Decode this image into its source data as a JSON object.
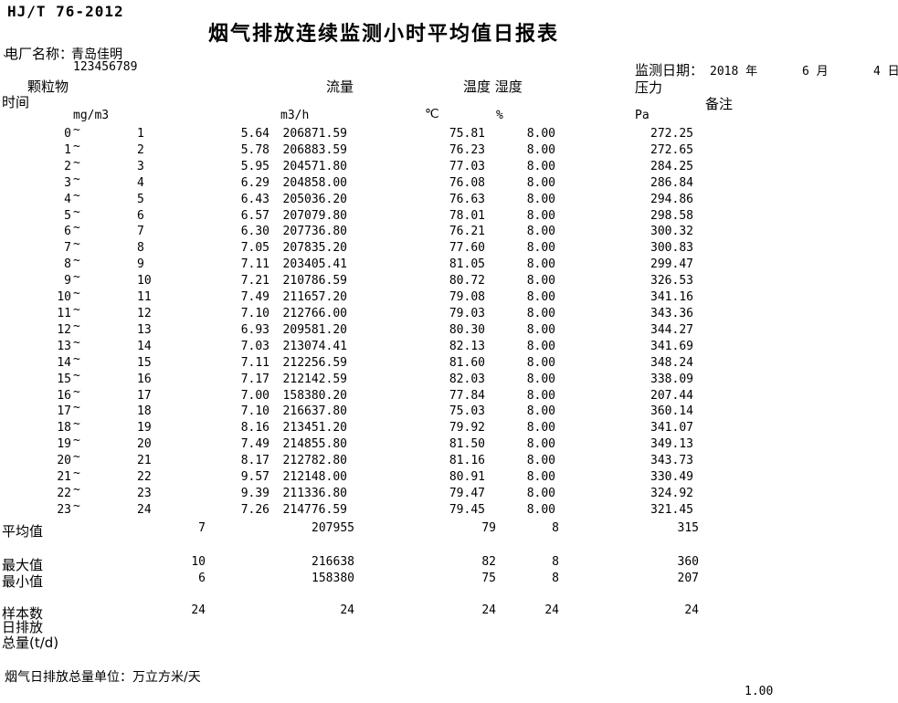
{
  "doc": {
    "standard": "HJ/T 76-2012",
    "title": "烟气排放连续监测小时平均值日报表",
    "plant_label": "电厂名称：",
    "plant_name": "青岛佳明",
    "plant_mark": "`",
    "plant_code": "123456789",
    "date_label": "监测日期：",
    "date_year": "2018 年",
    "date_month": "6 月",
    "date_day": "4 日"
  },
  "columns": {
    "time": "时间",
    "pm": "颗粒物",
    "flow": "流量",
    "temp_hum": "温度 湿度",
    "pressure": "压力",
    "remark": "备注"
  },
  "units": {
    "pm": "mg/m3",
    "flow": "m3/h",
    "temp": "℃",
    "humidity": "%",
    "pressure": "Pa"
  },
  "glyphs": {
    "tilde": "~"
  },
  "rows": [
    {
      "from": "0",
      "to": "1",
      "pm": "5.64",
      "flow": "206871.59",
      "temp": "75.81",
      "hum": "8.00",
      "press": "272.25"
    },
    {
      "from": "1",
      "to": "2",
      "pm": "5.78",
      "flow": "206883.59",
      "temp": "76.23",
      "hum": "8.00",
      "press": "272.65"
    },
    {
      "from": "2",
      "to": "3",
      "pm": "5.95",
      "flow": "204571.80",
      "temp": "77.03",
      "hum": "8.00",
      "press": "284.25"
    },
    {
      "from": "3",
      "to": "4",
      "pm": "6.29",
      "flow": "204858.00",
      "temp": "76.08",
      "hum": "8.00",
      "press": "286.84"
    },
    {
      "from": "4",
      "to": "5",
      "pm": "6.43",
      "flow": "205036.20",
      "temp": "76.63",
      "hum": "8.00",
      "press": "294.86"
    },
    {
      "from": "5",
      "to": "6",
      "pm": "6.57",
      "flow": "207079.80",
      "temp": "78.01",
      "hum": "8.00",
      "press": "298.58"
    },
    {
      "from": "6",
      "to": "7",
      "pm": "6.30",
      "flow": "207736.80",
      "temp": "76.21",
      "hum": "8.00",
      "press": "300.32"
    },
    {
      "from": "7",
      "to": "8",
      "pm": "7.05",
      "flow": "207835.20",
      "temp": "77.60",
      "hum": "8.00",
      "press": "300.83"
    },
    {
      "from": "8",
      "to": "9",
      "pm": "7.11",
      "flow": "203405.41",
      "temp": "81.05",
      "hum": "8.00",
      "press": "299.47"
    },
    {
      "from": "9",
      "to": "10",
      "pm": "7.21",
      "flow": "210786.59",
      "temp": "80.72",
      "hum": "8.00",
      "press": "326.53"
    },
    {
      "from": "10",
      "to": "11",
      "pm": "7.49",
      "flow": "211657.20",
      "temp": "79.08",
      "hum": "8.00",
      "press": "341.16"
    },
    {
      "from": "11",
      "to": "12",
      "pm": "7.10",
      "flow": "212766.00",
      "temp": "79.03",
      "hum": "8.00",
      "press": "343.36"
    },
    {
      "from": "12",
      "to": "13",
      "pm": "6.93",
      "flow": "209581.20",
      "temp": "80.30",
      "hum": "8.00",
      "press": "344.27"
    },
    {
      "from": "13",
      "to": "14",
      "pm": "7.03",
      "flow": "213074.41",
      "temp": "82.13",
      "hum": "8.00",
      "press": "341.69"
    },
    {
      "from": "14",
      "to": "15",
      "pm": "7.11",
      "flow": "212256.59",
      "temp": "81.60",
      "hum": "8.00",
      "press": "348.24"
    },
    {
      "from": "15",
      "to": "16",
      "pm": "7.17",
      "flow": "212142.59",
      "temp": "82.03",
      "hum": "8.00",
      "press": "338.09"
    },
    {
      "from": "16",
      "to": "17",
      "pm": "7.00",
      "flow": "158380.20",
      "temp": "77.84",
      "hum": "8.00",
      "press": "207.44"
    },
    {
      "from": "17",
      "to": "18",
      "pm": "7.10",
      "flow": "216637.80",
      "temp": "75.03",
      "hum": "8.00",
      "press": "360.14"
    },
    {
      "from": "18",
      "to": "19",
      "pm": "8.16",
      "flow": "213451.20",
      "temp": "79.92",
      "hum": "8.00",
      "press": "341.07"
    },
    {
      "from": "19",
      "to": "20",
      "pm": "7.49",
      "flow": "214855.80",
      "temp": "81.50",
      "hum": "8.00",
      "press": "349.13"
    },
    {
      "from": "20",
      "to": "21",
      "pm": "8.17",
      "flow": "212782.80",
      "temp": "81.16",
      "hum": "8.00",
      "press": "343.73"
    },
    {
      "from": "21",
      "to": "22",
      "pm": "9.57",
      "flow": "212148.00",
      "temp": "80.91",
      "hum": "8.00",
      "press": "330.49"
    },
    {
      "from": "22",
      "to": "23",
      "pm": "9.39",
      "flow": "211336.80",
      "temp": "79.47",
      "hum": "8.00",
      "press": "324.92"
    },
    {
      "from": "23",
      "to": "24",
      "pm": "7.26",
      "flow": "214776.59",
      "temp": "79.45",
      "hum": "8.00",
      "press": "321.45"
    }
  ],
  "summary": [
    {
      "label": "平均值",
      "pm": "7",
      "flow": "207955",
      "temp": "79",
      "hum": "8",
      "press": "315"
    },
    {
      "label": "最大值",
      "pm": "10",
      "flow": "216638",
      "temp": "82",
      "hum": "8",
      "press": "360"
    },
    {
      "label": "最小值",
      "pm": "6",
      "flow": "158380",
      "temp": "75",
      "hum": "8",
      "press": "207"
    },
    {
      "label": "样本数",
      "pm": "24",
      "flow": "24",
      "temp": "24",
      "hum": "24",
      "press": "24"
    }
  ],
  "footer": {
    "daily_emission_line1": "日排放",
    "daily_emission_line2": "总量(t/d)",
    "unit_note": "烟气日排放总量单位：万立方米/天",
    "page_number": "1.00"
  }
}
